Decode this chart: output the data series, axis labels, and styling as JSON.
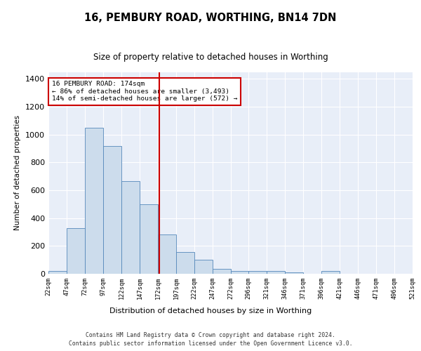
{
  "title1": "16, PEMBURY ROAD, WORTHING, BN14 7DN",
  "title2": "Size of property relative to detached houses in Worthing",
  "xlabel": "Distribution of detached houses by size in Worthing",
  "ylabel": "Number of detached properties",
  "property_size": 174,
  "bin_edges": [
    22,
    47,
    72,
    97,
    122,
    147,
    172,
    197,
    222,
    247,
    272,
    296,
    321,
    346,
    371,
    396,
    421,
    446,
    471,
    496,
    521
  ],
  "bar_heights": [
    20,
    330,
    1050,
    920,
    665,
    500,
    280,
    155,
    100,
    33,
    20,
    18,
    18,
    8,
    0,
    22,
    0,
    0,
    0,
    0
  ],
  "bar_color": "#ccdcec",
  "bar_edge_color": "#5588bb",
  "vline_color": "#cc0000",
  "annotation_text": "16 PEMBURY ROAD: 174sqm\n← 86% of detached houses are smaller (3,493)\n14% of semi-detached houses are larger (572) →",
  "annotation_box_color": "#ffffff",
  "annotation_box_edge_color": "#cc0000",
  "footer1": "Contains HM Land Registry data © Crown copyright and database right 2024.",
  "footer2": "Contains public sector information licensed under the Open Government Licence v3.0.",
  "ylim": [
    0,
    1450
  ],
  "background_color": "#e8eef8",
  "fig_background_color": "#ffffff",
  "grid_color": "#ffffff",
  "tick_labels": [
    "22sqm",
    "47sqm",
    "72sqm",
    "97sqm",
    "122sqm",
    "147sqm",
    "172sqm",
    "197sqm",
    "222sqm",
    "247sqm",
    "272sqm",
    "296sqm",
    "321sqm",
    "346sqm",
    "371sqm",
    "396sqm",
    "421sqm",
    "446sqm",
    "471sqm",
    "496sqm",
    "521sqm"
  ]
}
